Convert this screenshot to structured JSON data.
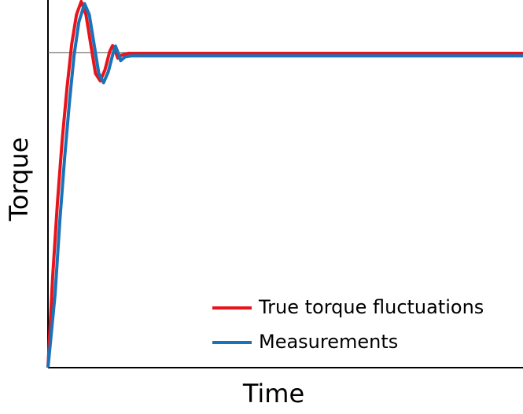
{
  "chart_data": {
    "type": "line",
    "x_label": "Time",
    "y_label": "Torque",
    "xlim": [
      0,
      100
    ],
    "ylim": [
      0,
      100
    ],
    "reference_line": 85.7,
    "legend": "lower right",
    "series": [
      {
        "name": "True torque fluctuations",
        "color": "#e8141b",
        "x": [
          0,
          1,
          2,
          3,
          4,
          5,
          6,
          7,
          8,
          9,
          10,
          11,
          12,
          13,
          13.6,
          14.2,
          14.7,
          15.5,
          17,
          100
        ],
        "values": [
          0,
          25,
          45,
          62,
          76,
          88,
          96,
          99.6,
          96,
          88,
          80,
          78,
          81,
          86,
          87.6,
          86,
          84.2,
          85,
          85.5,
          85.5
        ]
      },
      {
        "name": "Measurements",
        "color": "#1a73b8",
        "x": [
          0,
          1.5,
          2.5,
          3.5,
          4.5,
          5.5,
          6.5,
          7.7,
          8.7,
          9.7,
          10.7,
          11.7,
          12.7,
          13.7,
          14.2,
          14.8,
          15.3,
          16.2,
          17.5,
          100
        ],
        "values": [
          0,
          20,
          40,
          57,
          72,
          85,
          94,
          99,
          96,
          88,
          80,
          77.5,
          80.5,
          85.5,
          87.5,
          85.5,
          83.5,
          84.5,
          84.8,
          84.8
        ]
      }
    ]
  }
}
